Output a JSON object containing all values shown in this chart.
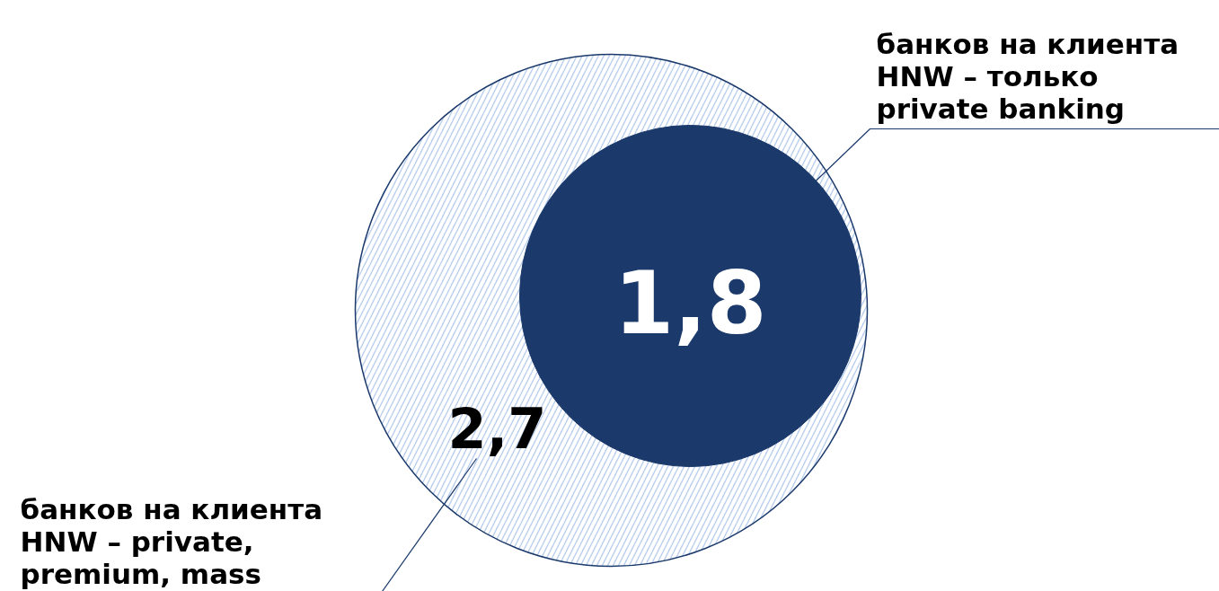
{
  "chart_data": {
    "type": "other",
    "categories": [
      "банков на клиента HNW – private, premium, mass",
      "банков на клиента HNW – только private banking"
    ],
    "values": [
      2.7,
      1.8
    ],
    "value_labels": [
      "2,7",
      "1,8"
    ],
    "colors": [
      "#b8cdee",
      "#1b3a6b"
    ]
  }
}
